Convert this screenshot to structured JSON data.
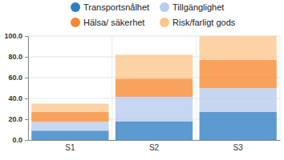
{
  "chart_data": {
    "type": "bar",
    "stacked": true,
    "grid": true,
    "legend": "top",
    "categories": [
      "S1",
      "S2",
      "S3"
    ],
    "series": [
      {
        "name": "Transportsnålhet",
        "color": "#2f7ec2",
        "values": [
          9,
          18,
          27
        ]
      },
      {
        "name": "Tillgänglighet",
        "color": "#b7ccee",
        "values": [
          8.5,
          23.5,
          23
        ]
      },
      {
        "name": "Hälsa/ säkerhet",
        "color": "#f7882f",
        "values": [
          9.5,
          17.5,
          27
        ]
      },
      {
        "name": "Risk/farligt gods",
        "color": "#fdc68c",
        "values": [
          8,
          23,
          23
        ]
      }
    ],
    "ylim": [
      0,
      100
    ],
    "yticks": [
      {
        "value": 0,
        "label": "0.0"
      },
      {
        "value": 20,
        "label": "20.0"
      },
      {
        "value": 40,
        "label": "40.0"
      },
      {
        "value": 60,
        "label": "60.0"
      },
      {
        "value": 80,
        "label": "80.0"
      },
      {
        "value": 100,
        "label": "100.0"
      }
    ]
  }
}
